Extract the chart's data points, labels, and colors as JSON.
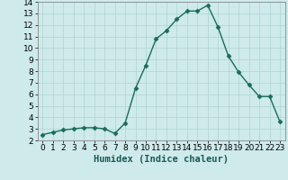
{
  "x": [
    0,
    1,
    2,
    3,
    4,
    5,
    6,
    7,
    8,
    9,
    10,
    11,
    12,
    13,
    14,
    15,
    16,
    17,
    18,
    19,
    20,
    21,
    22,
    23
  ],
  "y": [
    2.5,
    2.7,
    2.9,
    3.0,
    3.1,
    3.1,
    3.0,
    2.6,
    3.5,
    6.5,
    8.5,
    10.8,
    11.5,
    12.5,
    13.2,
    13.2,
    13.7,
    11.8,
    9.3,
    7.9,
    6.8,
    5.8,
    5.8,
    3.6
  ],
  "line_color": "#1a6b5a",
  "marker": "D",
  "marker_size": 2.5,
  "bg_color": "#ceeaea",
  "grid_color": "#b0d4d4",
  "xlabel": "Humidex (Indice chaleur)",
  "xlim": [
    -0.5,
    23.5
  ],
  "ylim": [
    2,
    14
  ],
  "yticks": [
    2,
    3,
    4,
    5,
    6,
    7,
    8,
    9,
    10,
    11,
    12,
    13,
    14
  ],
  "xticks": [
    0,
    1,
    2,
    3,
    4,
    5,
    6,
    7,
    8,
    9,
    10,
    11,
    12,
    13,
    14,
    15,
    16,
    17,
    18,
    19,
    20,
    21,
    22,
    23
  ],
  "xlabel_fontsize": 7.5,
  "tick_fontsize": 6.5,
  "line_width": 1.0
}
